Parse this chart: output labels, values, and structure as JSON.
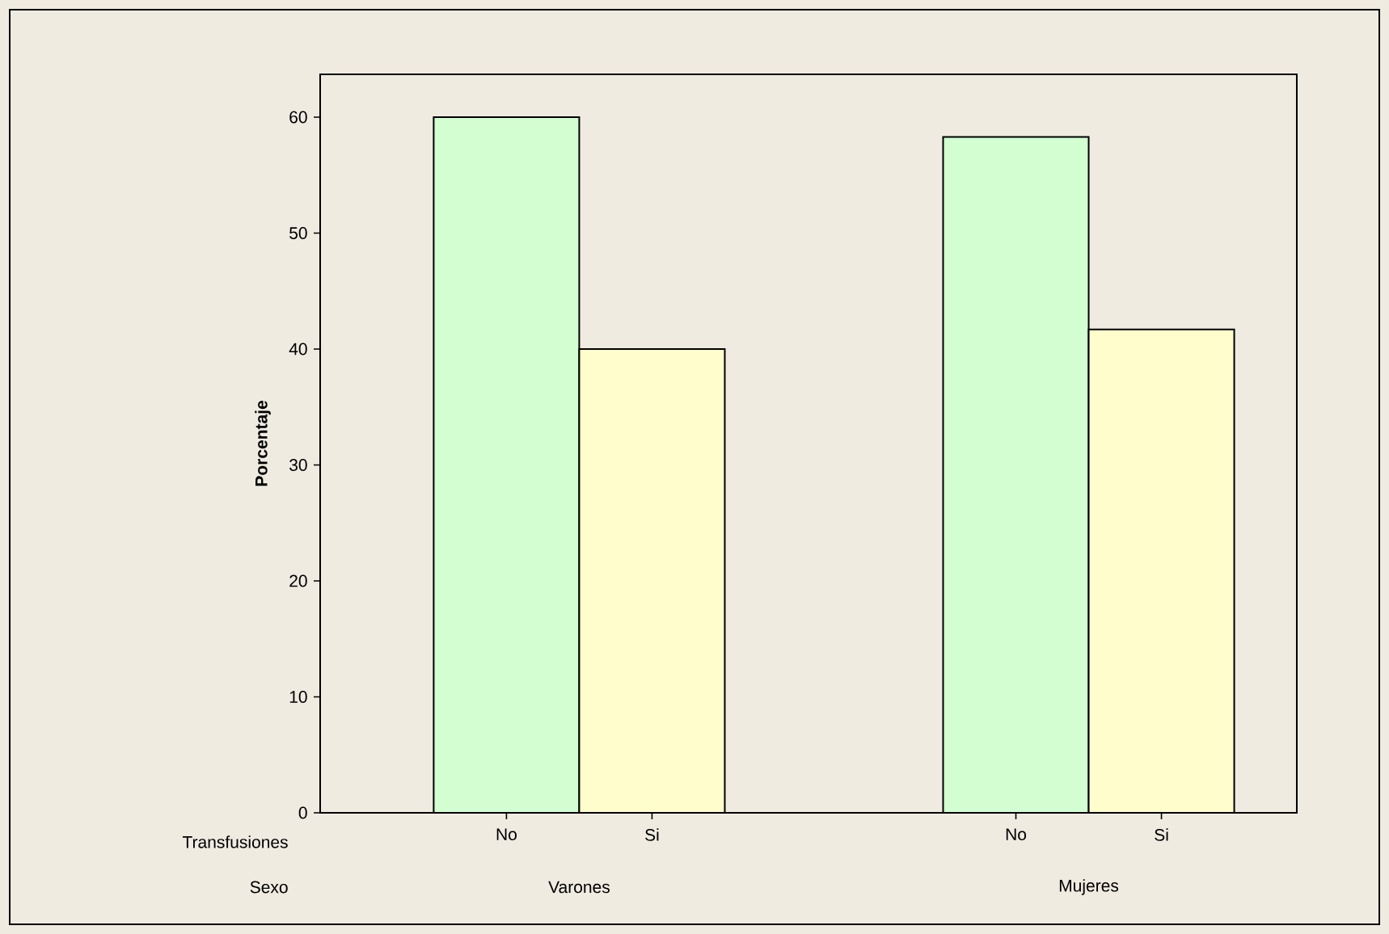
{
  "chart_data": {
    "type": "bar",
    "ylabel": "Porcentaje",
    "categories": [
      "No",
      "Si",
      "No",
      "Si"
    ],
    "values": [
      60,
      40,
      58.3,
      41.7
    ],
    "colors": [
      "#d2fed2",
      "#fffdcc",
      "#d2fed2",
      "#fffdcc"
    ],
    "ylim": [
      0,
      63.7
    ],
    "yticks": [
      0,
      10,
      20,
      30,
      40,
      50,
      60
    ],
    "annotations": [
      "Transfusiones",
      "Sexo",
      "Varones",
      "Mujeres"
    ]
  }
}
